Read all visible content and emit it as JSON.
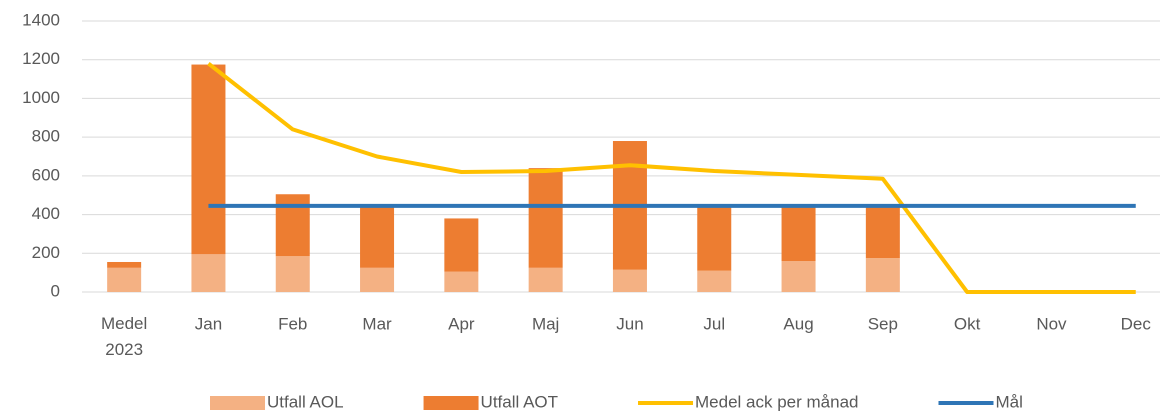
{
  "chart_data": {
    "type": "bar",
    "categories": [
      "Medel 2023",
      "Jan",
      "Feb",
      "Mar",
      "Apr",
      "Maj",
      "Jun",
      "Jul",
      "Aug",
      "Sep",
      "Okt",
      "Nov",
      "Dec"
    ],
    "series": [
      {
        "name": "Utfall AOL",
        "type": "bar",
        "color": "#f4b183",
        "values": [
          125,
          195,
          185,
          125,
          105,
          125,
          115,
          110,
          160,
          175,
          null,
          null,
          null
        ]
      },
      {
        "name": "Utfall AOT",
        "type": "bar",
        "color": "#ed7d31",
        "values": [
          30,
          980,
          320,
          320,
          275,
          515,
          665,
          335,
          285,
          270,
          null,
          null,
          null
        ]
      },
      {
        "name": "Medel ack per månad",
        "type": "line",
        "color": "#ffc000",
        "values": [
          null,
          1180,
          840,
          700,
          620,
          625,
          655,
          625,
          605,
          585,
          0,
          0,
          0
        ]
      },
      {
        "name": "Mål",
        "type": "line",
        "color": "#2e75b6",
        "values": [
          null,
          445,
          445,
          445,
          445,
          445,
          445,
          445,
          445,
          445,
          445,
          445,
          445
        ]
      }
    ],
    "stacked": true,
    "ylim": [
      0,
      1400
    ],
    "yticks": [
      0,
      200,
      400,
      600,
      800,
      1000,
      1200,
      1400
    ],
    "grid": true,
    "legend": "bottom"
  }
}
